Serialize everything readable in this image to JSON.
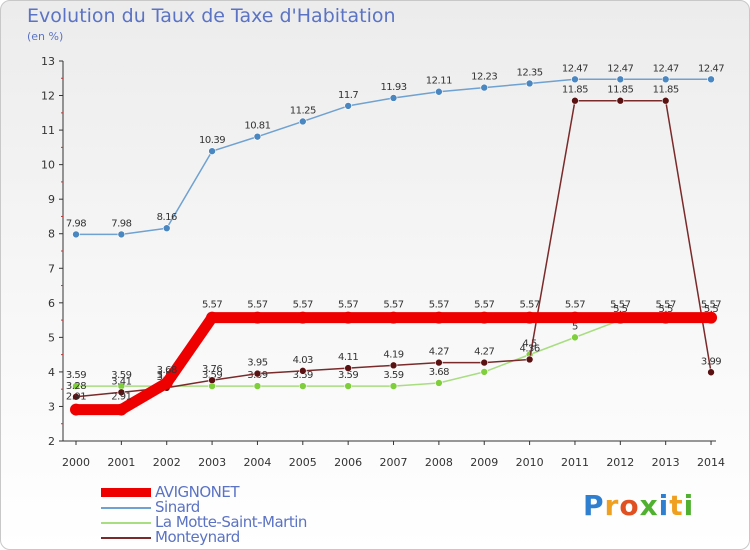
{
  "chart_data": {
    "type": "line",
    "title": "Evolution du Taux de Taxe d'Habitation",
    "subtitle": "(en %)",
    "ylim": [
      2,
      13
    ],
    "yticks": [
      2,
      3,
      4,
      5,
      6,
      7,
      8,
      9,
      10,
      11,
      12,
      13
    ],
    "categories": [
      "2000",
      "2001",
      "2002",
      "2003",
      "2004",
      "2005",
      "2006",
      "2007",
      "2008",
      "2009",
      "2010",
      "2011",
      "2012",
      "2013",
      "2014"
    ],
    "grid": false,
    "legend_position": "bottom-left",
    "series": [
      {
        "name": "Sinard",
        "color": "#6fa1d1",
        "marker": "#4a86c0",
        "values": [
          7.98,
          7.98,
          8.16,
          10.39,
          10.81,
          11.25,
          11.7,
          11.93,
          12.11,
          12.23,
          12.35,
          12.47,
          12.47,
          12.47,
          12.47
        ],
        "labels": [
          "7.98",
          "7.98",
          "8.16",
          "10.39",
          "10.81",
          "11.25",
          "11.7",
          "11.93",
          "12.11",
          "12.23",
          "12.35",
          "12.47",
          "12.47",
          "12.47",
          "12.47"
        ]
      },
      {
        "name": "La Motte-Saint-Martin",
        "color": "#a8dd80",
        "marker": "#7fcf3c",
        "values": [
          3.59,
          3.59,
          3.59,
          3.59,
          3.59,
          3.59,
          3.59,
          3.59,
          3.68,
          4.0,
          4.5,
          5.0,
          5.5,
          5.5,
          5.5
        ],
        "labels": [
          "3.59",
          "3.59",
          "3.59",
          "3.59",
          "3.59",
          "3.59",
          "3.59",
          "3.59",
          "3.68",
          "",
          "4.5",
          "5",
          "5.5",
          "5.5",
          "5.5"
        ]
      },
      {
        "name": "Monteynard",
        "color": "#7a2a2a",
        "marker": "#5a1111",
        "values": [
          3.28,
          3.41,
          3.54,
          3.76,
          3.95,
          4.03,
          4.11,
          4.19,
          4.27,
          4.27,
          4.36,
          11.85,
          11.85,
          11.85,
          3.99
        ],
        "labels": [
          "3.28",
          "3.41",
          "3.54",
          "3.76",
          "3.95",
          "4.03",
          "4.11",
          "4.19",
          "4.27",
          "4.27",
          "4.36",
          "11.85",
          "11.85",
          "11.85",
          "3.99"
        ]
      },
      {
        "name": "AVIGNONET",
        "color": "#ee0000",
        "marker": "#ee0000",
        "values": [
          2.91,
          2.91,
          3.68,
          5.57,
          5.57,
          5.57,
          5.57,
          5.57,
          5.57,
          5.57,
          5.57,
          5.57,
          5.57,
          5.57,
          5.57
        ],
        "labels": [
          "2.91",
          "2.91",
          "3.68",
          "5.57",
          "5.57",
          "5.57",
          "5.57",
          "5.57",
          "5.57",
          "5.57",
          "5.57",
          "5.57",
          "5.57",
          "5.57",
          "5.57"
        ]
      }
    ]
  },
  "legend": [
    {
      "label": "AVIGNONET",
      "color": "#ee0000"
    },
    {
      "label": "Sinard",
      "color": "#6fa1d1"
    },
    {
      "label": "La Motte-Saint-Martin",
      "color": "#a8dd80"
    },
    {
      "label": "Monteynard",
      "color": "#7a2a2a"
    }
  ],
  "logo": {
    "text": "Proxiti"
  }
}
